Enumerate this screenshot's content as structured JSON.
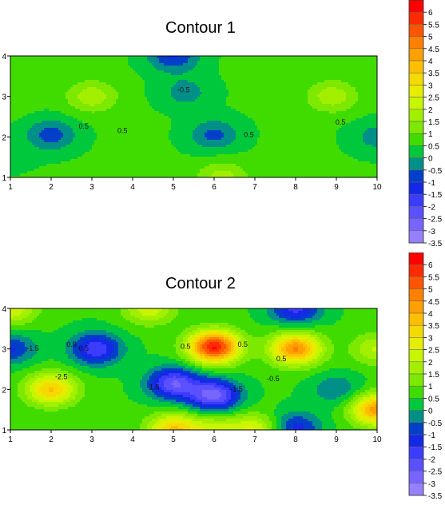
{
  "chart_data": [
    {
      "type": "heatmap",
      "title": "Contour 1",
      "xlim": [
        1,
        10
      ],
      "ylim": [
        1,
        4
      ],
      "x_ticks": [
        "1",
        "2",
        "3",
        "4",
        "5",
        "6",
        "7",
        "8",
        "9",
        "10"
      ],
      "y_ticks": [
        "1",
        "2",
        "3",
        "4"
      ],
      "contour_labels": [
        {
          "text": "-0.5",
          "x": 5.25,
          "y": 3.1
        },
        {
          "text": "0.5",
          "x": 2.8,
          "y": 2.2
        },
        {
          "text": "0.5",
          "x": 3.75,
          "y": 2.1
        },
        {
          "text": "0.5",
          "x": 6.85,
          "y": 2.0
        },
        {
          "text": "0.5",
          "x": 9.1,
          "y": 2.3
        }
      ],
      "features": [
        {
          "x": 2.0,
          "y": 2.05,
          "value": -1.3
        },
        {
          "x": 5.0,
          "y": 4.0,
          "value": -1.6
        },
        {
          "x": 5.3,
          "y": 3.1,
          "value": -0.8
        },
        {
          "x": 6.0,
          "y": 2.05,
          "value": -1.2
        },
        {
          "x": 10.0,
          "y": 2.0,
          "value": -0.8
        },
        {
          "x": 3.0,
          "y": 3.0,
          "value": 1.3
        },
        {
          "x": 8.9,
          "y": 3.0,
          "value": 1.3
        },
        {
          "x": 6.2,
          "y": 1.0,
          "value": 1.2
        },
        {
          "x": 1.0,
          "y": 3.0,
          "value": 0.3
        },
        {
          "x": 1.0,
          "y": 1.5,
          "value": -0.2
        }
      ],
      "colorbar": {
        "ticks": [
          "6",
          "5.5",
          "5",
          "4.5",
          "4",
          "3.5",
          "3",
          "2.5",
          "2",
          "1.5",
          "1",
          "0.5",
          "0",
          "-0.5",
          "-1",
          "-1.5",
          "-2",
          "-2.5",
          "-3",
          "-3.5"
        ],
        "colors": [
          "#ff0000",
          "#ff2a00",
          "#ff5500",
          "#ff8000",
          "#ff9f00",
          "#ffbf00",
          "#f5da00",
          "#e6ed00",
          "#c8f500",
          "#a2f000",
          "#7de800",
          "#40dc00",
          "#00c83c",
          "#009088",
          "#0040c8",
          "#1428e6",
          "#3c3cff",
          "#5a50ff",
          "#7864ff",
          "#9680ff"
        ]
      }
    },
    {
      "type": "heatmap",
      "title": "Contour 2",
      "xlim": [
        1,
        10
      ],
      "ylim": [
        1,
        4
      ],
      "x_ticks": [
        "1",
        "2",
        "3",
        "4",
        "5",
        "6",
        "7",
        "8",
        "9",
        "10"
      ],
      "y_ticks": [
        "1",
        "2",
        "3",
        "4"
      ],
      "contour_labels": [
        {
          "text": "-1.5",
          "x": 1.55,
          "y": 2.95
        },
        {
          "text": "0.5",
          "x": 2.5,
          "y": 3.05
        },
        {
          "text": "0.5",
          "x": 2.8,
          "y": 2.95
        },
        {
          "text": "-2.5",
          "x": 2.25,
          "y": 2.25
        },
        {
          "text": "0.5",
          "x": 5.3,
          "y": 3.0
        },
        {
          "text": "0.5",
          "x": 6.7,
          "y": 3.05
        },
        {
          "text": "0.5",
          "x": 7.65,
          "y": 2.7
        },
        {
          "text": "-0.5",
          "x": 7.45,
          "y": 2.2
        },
        {
          "text": "-1.5",
          "x": 4.5,
          "y": 2.0
        },
        {
          "text": "-1.5",
          "x": 6.55,
          "y": 1.95
        }
      ],
      "features": [
        {
          "x": 2.0,
          "y": 2.0,
          "value": 3.0
        },
        {
          "x": 6.0,
          "y": 3.05,
          "value": 5.5
        },
        {
          "x": 8.0,
          "y": 3.0,
          "value": 4.0
        },
        {
          "x": 5.0,
          "y": 1.0,
          "value": 3.0
        },
        {
          "x": 6.0,
          "y": 1.85,
          "value": -3.3
        },
        {
          "x": 5.0,
          "y": 2.15,
          "value": -3.0
        },
        {
          "x": 3.1,
          "y": 3.0,
          "value": -2.5
        },
        {
          "x": 1.0,
          "y": 3.0,
          "value": -1.6
        },
        {
          "x": 4.4,
          "y": 4.0,
          "value": 1.8
        },
        {
          "x": 6.0,
          "y": 1.0,
          "value": 1.5
        },
        {
          "x": 7.0,
          "y": 1.0,
          "value": 2.0
        },
        {
          "x": 8.0,
          "y": 4.0,
          "value": -2.2
        },
        {
          "x": 8.0,
          "y": 1.05,
          "value": -1.8
        },
        {
          "x": 10.0,
          "y": 1.5,
          "value": 3.8
        },
        {
          "x": 9.0,
          "y": 2.0,
          "value": -1.0
        },
        {
          "x": 10.0,
          "y": 3.0,
          "value": 1.5
        },
        {
          "x": 1.0,
          "y": 4.0,
          "value": 2.0
        }
      ],
      "colorbar": {
        "ticks": [
          "6",
          "5.5",
          "5",
          "4.5",
          "4",
          "3.5",
          "3",
          "2.5",
          "2",
          "1.5",
          "1",
          "0.5",
          "0",
          "-0.5",
          "-1",
          "-1.5",
          "-2",
          "-2.5",
          "-3",
          "-3.5"
        ],
        "colors": [
          "#ff0000",
          "#ff2a00",
          "#ff5500",
          "#ff8000",
          "#ff9f00",
          "#ffbf00",
          "#f5da00",
          "#e6ed00",
          "#c8f500",
          "#a2f000",
          "#7de800",
          "#40dc00",
          "#00c83c",
          "#009088",
          "#0040c8",
          "#1428e6",
          "#3c3cff",
          "#5a50ff",
          "#7864ff",
          "#9680ff"
        ]
      }
    }
  ]
}
